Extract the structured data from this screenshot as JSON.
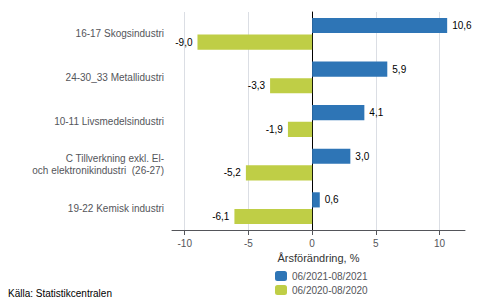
{
  "chart_data": {
    "type": "bar",
    "orientation": "horizontal",
    "categories": [
      "19-22 Kemisk industri",
      "C Tillverkning exkl. El-\noch elektronikindustri  (26-27)",
      "10-11 Livsmedelsindustri",
      "24-30_33 Metallidustri",
      "16-17 Skogsindustri"
    ],
    "series": [
      {
        "name": "06/2021-08/2021",
        "color": "#2E75B6",
        "values": [
          0.6,
          3.0,
          4.1,
          5.9,
          10.6
        ],
        "value_labels": [
          "0,6",
          "3,0",
          "4,1",
          "5,9",
          "10,6"
        ]
      },
      {
        "name": "06/2020-08/2020",
        "color": "#BFCE46",
        "values": [
          -6.1,
          -5.2,
          -1.9,
          -3.3,
          -9.0
        ],
        "value_labels": [
          "-6,1",
          "-5,2",
          "-1,9",
          "-3,3",
          "-9,0"
        ]
      }
    ],
    "xlabel": "Årsförändring, %",
    "xlim": [
      -11,
      12
    ],
    "xticks": [
      -10,
      -5,
      0,
      5,
      10
    ],
    "grid": true,
    "data_labels": true,
    "legend": "bottom",
    "annotations": [
      "Källa: Statistikcentralen"
    ]
  }
}
